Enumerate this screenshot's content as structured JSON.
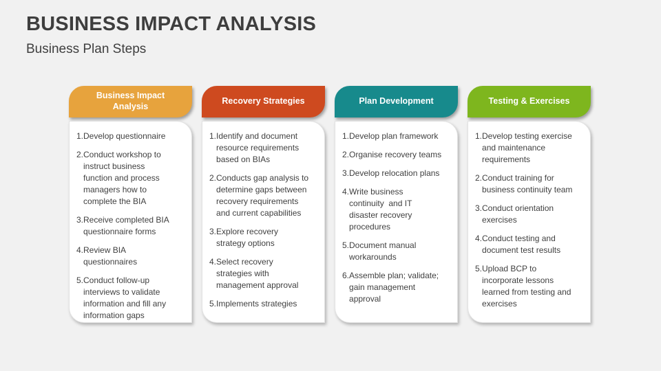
{
  "slide": {
    "title": "BUSINESS IMPACT ANALYSIS",
    "subtitle": "Business Plan Steps"
  },
  "columns": [
    {
      "header": "Business Impact Analysis",
      "color": "#E7A33D",
      "items": [
        {
          "num": "1.",
          "text": "Develop questionnaire"
        },
        {
          "num": "2.",
          "text": "Conduct workshop to\ninstruct business\nfunction and process\nmanagers how to\ncomplete the BIA"
        },
        {
          "num": "3.",
          "text": "Receive completed BIA\nquestionnaire forms"
        },
        {
          "num": "4.",
          "text": "Review BIA\nquestionnaires"
        },
        {
          "num": "5.",
          "text": "Conduct follow-up\ninterviews to validate\ninformation and fill any\ninformation gaps"
        }
      ]
    },
    {
      "header": "Recovery Strategies",
      "color": "#CE4A1F",
      "items": [
        {
          "num": "1.",
          "text": "Identify and document\nresource requirements\nbased on BIAs"
        },
        {
          "num": "2.",
          "text": "Conducts gap analysis to\ndetermine gaps between\nrecovery requirements\nand current capabilities"
        },
        {
          "num": "3.",
          "text": "Explore recovery\nstrategy options"
        },
        {
          "num": "4.",
          "text": "Select recovery\nstrategies with\nmanagement approval"
        },
        {
          "num": "5.",
          "text": "Implements strategies"
        }
      ]
    },
    {
      "header": "Plan Development",
      "color": "#178A8C",
      "items": [
        {
          "num": "1.",
          "text": "Develop plan framework"
        },
        {
          "num": "2.",
          "text": "Organise recovery teams"
        },
        {
          "num": "3.",
          "text": "Develop relocation plans"
        },
        {
          "num": "4.",
          "text": "Write business\ncontinuity  and IT\ndisaster recovery\nprocedures"
        },
        {
          "num": "5.",
          "text": "Document manual\nworkarounds"
        },
        {
          "num": "6.",
          "text": "Assemble plan; validate;\ngain management\napproval"
        }
      ]
    },
    {
      "header": "Testing & Exercises",
      "color": "#7EB61E",
      "items": [
        {
          "num": "1.",
          "text": "Develop testing exercise\nand maintenance\nrequirements"
        },
        {
          "num": "2.",
          "text": "Conduct training for\nbusiness continuity team"
        },
        {
          "num": "3.",
          "text": "Conduct orientation\nexercises"
        },
        {
          "num": "4.",
          "text": "Conduct testing and\ndocument test results"
        },
        {
          "num": "5.",
          "text": "Upload BCP to\nincorporate lessons\nlearned from testing and\nexercises"
        }
      ]
    }
  ]
}
